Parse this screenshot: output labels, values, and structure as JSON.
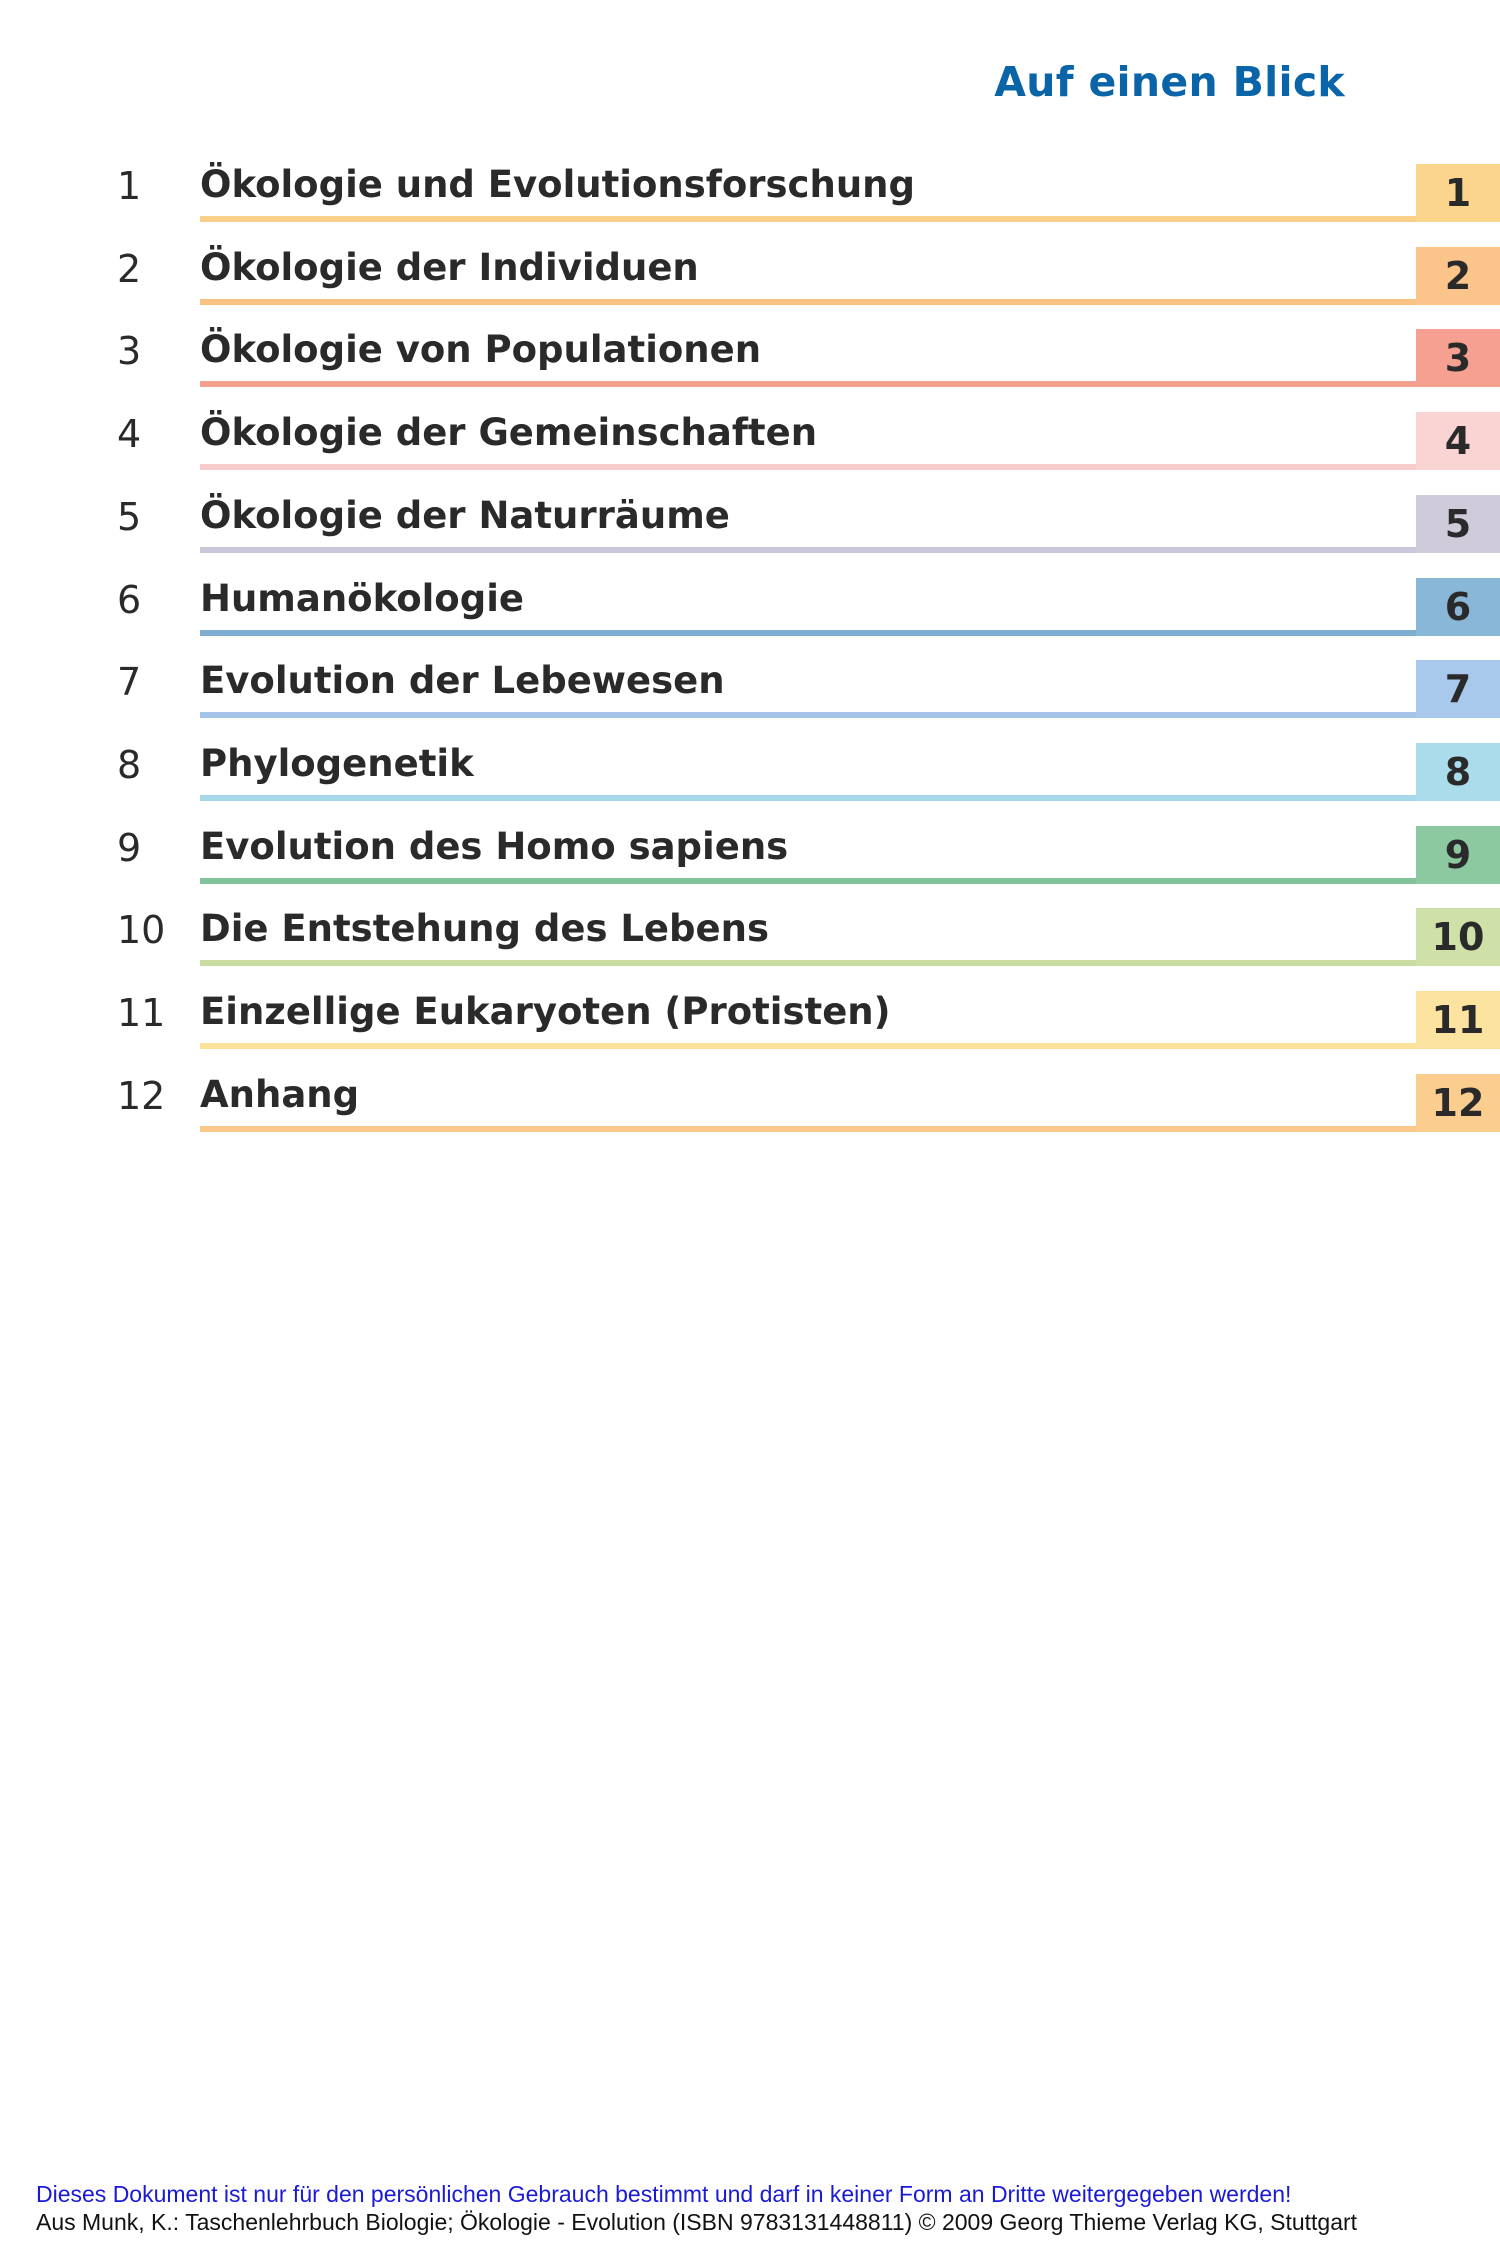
{
  "header": {
    "title": "Auf einen Blick"
  },
  "toc": [
    {
      "number": "1",
      "title": "Ökologie und Evolutionsforschung",
      "tab": "1",
      "color": "#fcd58c",
      "line_color": "#fbd08a"
    },
    {
      "number": "2",
      "title": "Ökologie der Individuen",
      "tab": "2",
      "color": "#fbc48a",
      "line_color": "#f9c283"
    },
    {
      "number": "3",
      "title": "Ökologie von Populationen",
      "tab": "3",
      "color": "#f5a090",
      "line_color": "#f4a192"
    },
    {
      "number": "4",
      "title": "Ökologie der Gemeinschaften",
      "tab": "4",
      "color": "#fad3d3",
      "line_color": "#f9cccd"
    },
    {
      "number": "5",
      "title": "Ökologie der Naturräume",
      "tab": "5",
      "color": "#cfcbdb",
      "line_color": "#cbc7da"
    },
    {
      "number": "6",
      "title": "Humanökologie",
      "tab": "6",
      "color": "#88b7d8",
      "line_color": "#7faed3"
    },
    {
      "number": "7",
      "title": "Evolution der Lebewesen",
      "tab": "7",
      "color": "#a9c9ec",
      "line_color": "#a4c4ea"
    },
    {
      "number": "8",
      "title": "Phylogenetik",
      "tab": "8",
      "color": "#abdcec",
      "line_color": "#a6d8ea"
    },
    {
      "number": "9",
      "title": "Evolution des Homo sapiens",
      "tab": "9",
      "color": "#8cc9a0",
      "line_color": "#83c39b"
    },
    {
      "number": "10",
      "title": "Die Entstehung des Lebens",
      "tab": "10",
      "color": "#cfe0a8",
      "line_color": "#c9dca1"
    },
    {
      "number": "11",
      "title": "Einzellige Eukaryoten (Protisten)",
      "tab": "11",
      "color": "#fde3a0",
      "line_color": "#fde09a"
    },
    {
      "number": "12",
      "title": "Anhang",
      "tab": "12",
      "color": "#fbcd8f",
      "line_color": "#fbc98a"
    }
  ],
  "footer": {
    "line1": "Dieses Dokument ist nur für den persönlichen Gebrauch bestimmt und darf in keiner Form an Dritte weitergegeben werden!",
    "line2": "Aus Munk, K.: Taschenlehrbuch Biologie; Ökologie - Evolution (ISBN 9783131448811) © 2009 Georg Thieme Verlag KG, Stuttgart"
  }
}
